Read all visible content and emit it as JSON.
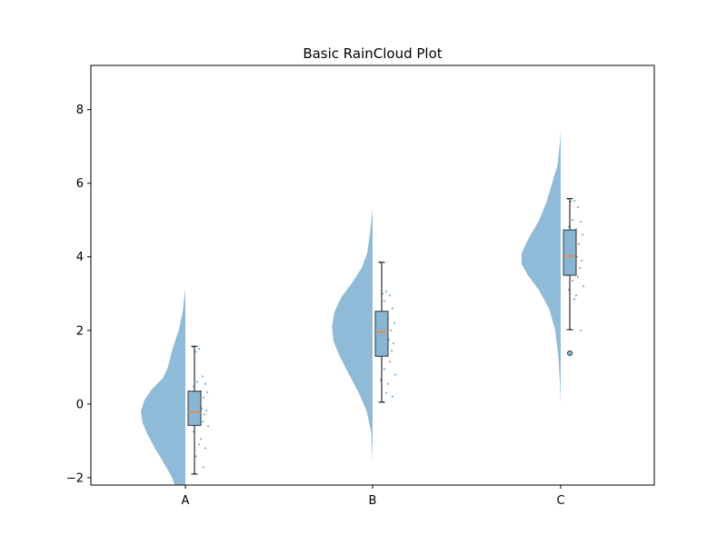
{
  "chart_data": {
    "type": "raincloud",
    "title": "Basic RainCloud Plot",
    "xlabel": "",
    "ylabel": "",
    "categories": [
      "A",
      "B",
      "C"
    ],
    "ylim": [
      -2.2,
      9.2
    ],
    "yticks": [
      -2,
      0,
      2,
      4,
      6,
      8
    ],
    "ytick_labels": [
      "−2",
      "0",
      "2",
      "4",
      "6",
      "8"
    ],
    "grid": false,
    "colors": {
      "violin": "#1f77b4",
      "box_fill": "#8ab4d4",
      "median": "#ff7f0e",
      "points": "#1f77b4",
      "axes": "#000000"
    },
    "groups": [
      {
        "name": "A",
        "points": [
          1.55,
          1.5,
          1.42,
          0.75,
          0.6,
          0.55,
          0.48,
          0.35,
          0.32,
          0.22,
          0.18,
          0.05,
          -0.05,
          -0.12,
          -0.18,
          -0.22,
          -0.28,
          -0.35,
          -0.42,
          -0.48,
          -0.55,
          -0.6,
          -0.75,
          -0.95,
          -1.1,
          -1.2,
          -1.42,
          -1.72,
          -1.9
        ],
        "box": {
          "q1": -0.58,
          "median": -0.22,
          "q3": 0.35,
          "whisker_low": -1.9,
          "whisker_high": 1.57
        },
        "outliers": [],
        "density": [
          [
            -2.3,
            0.24
          ],
          [
            -2.0,
            0.34
          ],
          [
            -1.6,
            0.55
          ],
          [
            -1.2,
            0.78
          ],
          [
            -0.8,
            0.98
          ],
          [
            -0.5,
            1.1
          ],
          [
            -0.2,
            1.14
          ],
          [
            0.1,
            1.05
          ],
          [
            0.4,
            0.86
          ],
          [
            0.7,
            0.58
          ],
          [
            1.0,
            0.45
          ],
          [
            1.3,
            0.38
          ],
          [
            1.6,
            0.3
          ],
          [
            2.0,
            0.17
          ],
          [
            2.5,
            0.07
          ],
          [
            3.15,
            0.0
          ]
        ]
      },
      {
        "name": "B",
        "points": [
          3.85,
          3.05,
          3.0,
          2.95,
          2.8,
          2.6,
          2.35,
          2.3,
          2.2,
          2.1,
          2.0,
          1.95,
          1.85,
          1.75,
          1.65,
          1.55,
          1.45,
          1.4,
          1.3,
          1.15,
          0.95,
          0.8,
          0.65,
          0.55,
          0.3,
          0.2,
          0.05
        ],
        "box": {
          "q1": 1.3,
          "median": 1.95,
          "q3": 2.52,
          "whisker_low": 0.05,
          "whisker_high": 3.85
        },
        "outliers": [],
        "density": [
          [
            -1.6,
            0.0
          ],
          [
            -0.8,
            0.03
          ],
          [
            -0.2,
            0.15
          ],
          [
            0.3,
            0.35
          ],
          [
            0.8,
            0.6
          ],
          [
            1.3,
            0.84
          ],
          [
            1.7,
            1.0
          ],
          [
            2.1,
            1.04
          ],
          [
            2.5,
            0.98
          ],
          [
            2.9,
            0.8
          ],
          [
            3.3,
            0.52
          ],
          [
            3.7,
            0.28
          ],
          [
            4.1,
            0.14
          ],
          [
            4.6,
            0.07
          ],
          [
            5.3,
            0.0
          ]
        ]
      },
      {
        "name": "C",
        "points": [
          5.58,
          5.52,
          5.5,
          5.35,
          5.0,
          4.95,
          4.82,
          4.75,
          4.6,
          4.5,
          4.35,
          4.2,
          4.1,
          4.0,
          3.9,
          3.8,
          3.7,
          3.6,
          3.5,
          3.45,
          3.35,
          3.2,
          3.1,
          2.95,
          2.85,
          2.0,
          1.38
        ],
        "box": {
          "q1": 3.5,
          "median": 4.02,
          "q3": 4.73,
          "whisker_low": 2.02,
          "whisker_high": 5.58
        },
        "outliers": [
          1.38
        ],
        "density": [
          [
            0.0,
            0.0
          ],
          [
            0.6,
            0.02
          ],
          [
            1.3,
            0.06
          ],
          [
            2.0,
            0.14
          ],
          [
            2.6,
            0.3
          ],
          [
            3.1,
            0.56
          ],
          [
            3.5,
            0.84
          ],
          [
            3.8,
            1.0
          ],
          [
            4.1,
            1.0
          ],
          [
            4.5,
            0.82
          ],
          [
            5.0,
            0.55
          ],
          [
            5.5,
            0.36
          ],
          [
            6.0,
            0.22
          ],
          [
            6.5,
            0.08
          ],
          [
            7.0,
            0.03
          ],
          [
            7.4,
            0.0
          ]
        ]
      }
    ]
  }
}
